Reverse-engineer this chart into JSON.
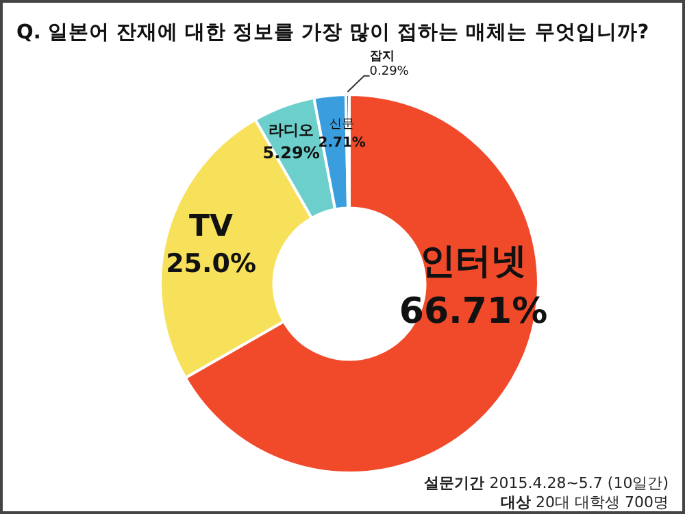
{
  "chart_data": {
    "type": "donut",
    "title": "Q. 일본어 잔재에 대한 정보를 가장 많이 접하는 매체는 무엇입니까?",
    "categories": [
      "인터넷",
      "TV",
      "라디오",
      "신문",
      "잡지"
    ],
    "values": [
      66.71,
      25.0,
      5.29,
      2.71,
      0.29
    ],
    "value_labels": [
      "66.71%",
      "25.0%",
      "5.29%",
      "2.71%",
      "0.29%"
    ],
    "colors": [
      "#f04a2a",
      "#f7e15a",
      "#6dcfcb",
      "#3a9ede",
      "#555555"
    ],
    "annotations": [
      "**설문기간** 2015.4.28~5.7 (10일간)",
      "**대상** 20대 대학생 700명"
    ]
  }
}
